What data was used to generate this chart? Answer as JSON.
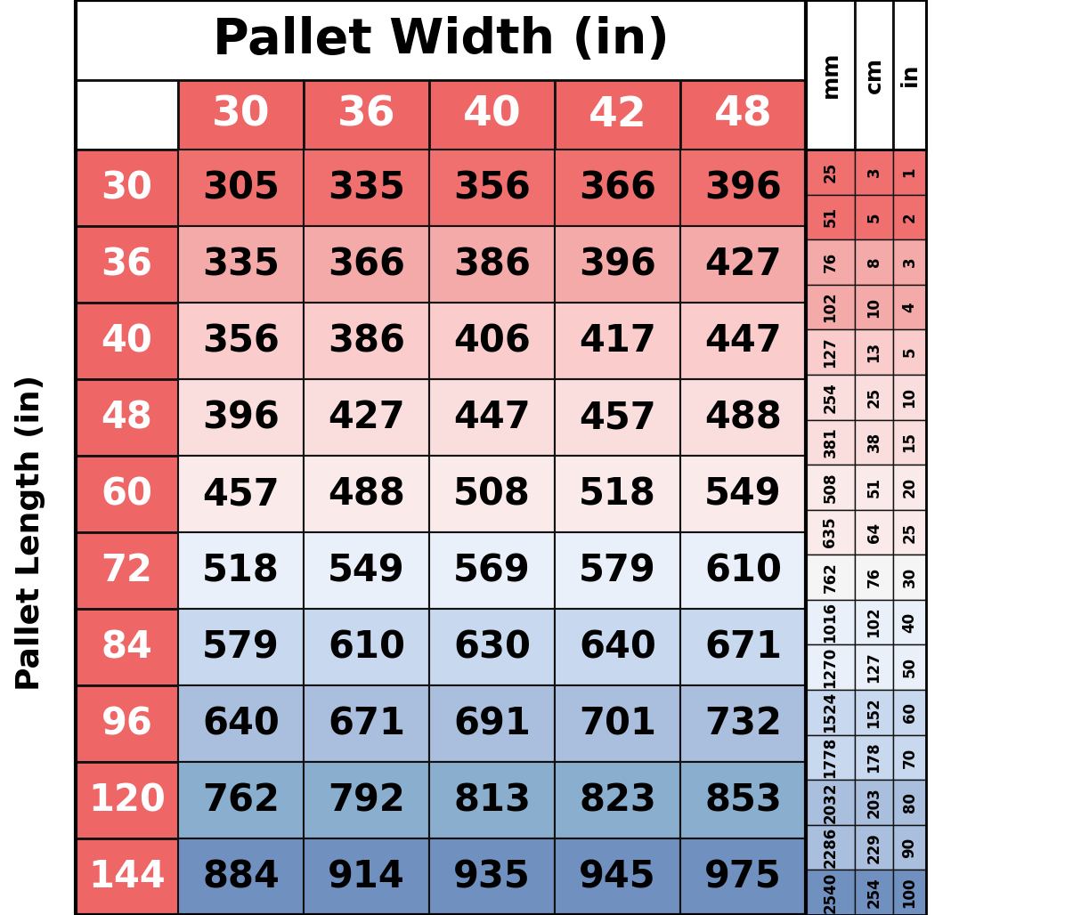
{
  "title": "Pallet Width (in)",
  "ylabel": "Pallet Length (in)",
  "width_headers": [
    "30",
    "36",
    "40",
    "42",
    "48"
  ],
  "length_headers": [
    "30",
    "36",
    "40",
    "48",
    "60",
    "72",
    "84",
    "96",
    "120",
    "144"
  ],
  "table_data": [
    [
      305,
      335,
      356,
      366,
      396
    ],
    [
      335,
      366,
      386,
      396,
      427
    ],
    [
      356,
      386,
      406,
      417,
      447
    ],
    [
      396,
      427,
      447,
      457,
      488
    ],
    [
      457,
      488,
      508,
      518,
      549
    ],
    [
      518,
      549,
      569,
      579,
      610
    ],
    [
      579,
      610,
      630,
      640,
      671
    ],
    [
      640,
      671,
      691,
      701,
      732
    ],
    [
      762,
      792,
      813,
      823,
      853
    ],
    [
      884,
      914,
      935,
      945,
      975
    ]
  ],
  "mm_vals": [
    "25",
    "51",
    "76",
    "102",
    "127",
    "254",
    "381",
    "508",
    "635",
    "762",
    "1016",
    "1270",
    "1524",
    "1778",
    "2032",
    "2286",
    "2540"
  ],
  "cm_vals": [
    "3",
    "5",
    "8",
    "10",
    "13",
    "25",
    "38",
    "51",
    "64",
    "76",
    "102",
    "127",
    "152",
    "178",
    "203",
    "229",
    "254"
  ],
  "in_vals": [
    "1",
    "2",
    "3",
    "4",
    "5",
    "10",
    "15",
    "20",
    "25",
    "30",
    "40",
    "50",
    "60",
    "70",
    "80",
    "90",
    "100"
  ],
  "row_bg": [
    "#F07070",
    "#F5AAAA",
    "#FACCCC",
    "#FADDDD",
    "#FAEAEA",
    "#EAF0FA",
    "#C8D8EE",
    "#AABEDD",
    "#8AAECE",
    "#7090C0"
  ],
  "side_row_bg": [
    "#F07070",
    "#F07070",
    "#F5AAAA",
    "#F5AAAA",
    "#FACCCC",
    "#FADDDD",
    "#FADDDD",
    "#FAEAEA",
    "#FAEAEA",
    "#F5F5F5",
    "#EAF0FA",
    "#EAF0FA",
    "#C8D8EE",
    "#C8D8EE",
    "#AABEDD",
    "#AABEDD",
    "#7090C0"
  ],
  "header_color": "#EE6666",
  "header_text_color": "#FFFFFF",
  "title_bg": "#FFFFFF",
  "empty_cell_bg": "#FFFFFF",
  "side_header_bg": "#FFFFFF",
  "border_color": "#111111"
}
